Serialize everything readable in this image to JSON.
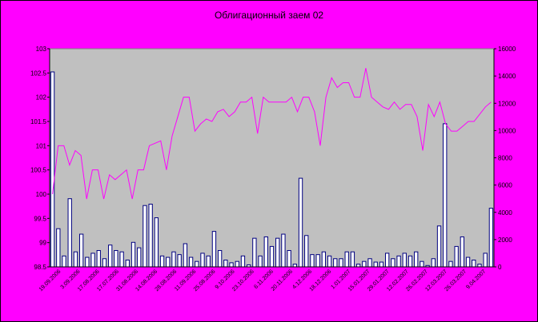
{
  "chart_data": {
    "type": "bar+line",
    "title": "Облигационный заем 02",
    "colors": {
      "background": "#ff00ff",
      "plot_area": "#c0c0c0",
      "bar_fill": "#ffffff",
      "bar_edge": "#000080",
      "line": "#ff00ff"
    },
    "x_tick_labels": [
      "19.09.2006",
      "3.09.2006",
      "17.08.2006",
      "17.07.2006",
      "31.08.2006",
      "14.08.2006",
      "28.08.2006",
      "11.09.2006",
      "25.08.2006",
      "9.10.2006",
      "23.10.2006",
      "6.11.2006",
      "20.11.2006",
      "4.12.2006",
      "18.12.2006",
      "1.01.2007",
      "15.01.2007",
      "29.01.2007",
      "12.02.2007",
      "26.02.2007",
      "12.03.2007",
      "26.03.2007",
      "9.04.2007"
    ],
    "y_left": {
      "min": 98.5,
      "max": 103,
      "ticks": [
        "98.5",
        "99",
        "99.5",
        "100",
        "100.5",
        "101",
        "101.5",
        "102",
        "102.5",
        "103"
      ]
    },
    "y_right": {
      "min": 0,
      "max": 16000,
      "ticks": [
        "0",
        "2000",
        "4000",
        "6000",
        "8000",
        "10000",
        "12000",
        "14000",
        "16000"
      ]
    },
    "series": [
      {
        "type": "line",
        "axis": "left",
        "values": [
          100.0,
          101.0,
          101.0,
          100.6,
          100.9,
          100.8,
          99.9,
          100.5,
          100.5,
          99.9,
          100.4,
          100.3,
          100.4,
          100.5,
          99.9,
          100.5,
          100.5,
          101.0,
          101.05,
          101.1,
          100.5,
          101.2,
          101.6,
          102.0,
          102.0,
          101.3,
          101.45,
          101.55,
          101.5,
          101.7,
          101.75,
          101.6,
          101.7,
          101.9,
          101.9,
          102.0,
          101.25,
          102.0,
          101.9,
          101.9,
          101.9,
          101.9,
          102.0,
          101.7,
          102.0,
          102.0,
          101.7,
          101.0,
          102.0,
          102.4,
          102.2,
          102.3,
          102.3,
          102.0,
          102.0,
          102.6,
          102.0,
          101.9,
          101.8,
          101.75,
          101.9,
          101.75,
          101.85,
          101.85,
          101.6,
          100.9,
          101.85,
          101.6,
          101.9,
          101.45,
          101.3,
          101.3,
          101.4,
          101.5,
          101.5,
          101.65,
          101.8,
          101.9
        ]
      },
      {
        "type": "bar",
        "axis": "right",
        "values": [
          14300,
          2800,
          800,
          5000,
          1100,
          2400,
          700,
          1000,
          1200,
          600,
          1600,
          1200,
          1100,
          500,
          1800,
          1400,
          4500,
          4600,
          3600,
          800,
          700,
          1100,
          900,
          1700,
          700,
          400,
          1000,
          800,
          2600,
          1200,
          500,
          300,
          400,
          800,
          150,
          2100,
          800,
          2200,
          1500,
          2100,
          2400,
          1200,
          200,
          6500,
          2300,
          900,
          900,
          1100,
          800,
          600,
          600,
          1100,
          1100,
          200,
          400,
          600,
          350,
          350,
          1000,
          600,
          800,
          1000,
          800,
          1100,
          400,
          100,
          600,
          3000,
          10500,
          400,
          1500,
          2200,
          700,
          500,
          200,
          1000,
          4300
        ]
      }
    ]
  }
}
